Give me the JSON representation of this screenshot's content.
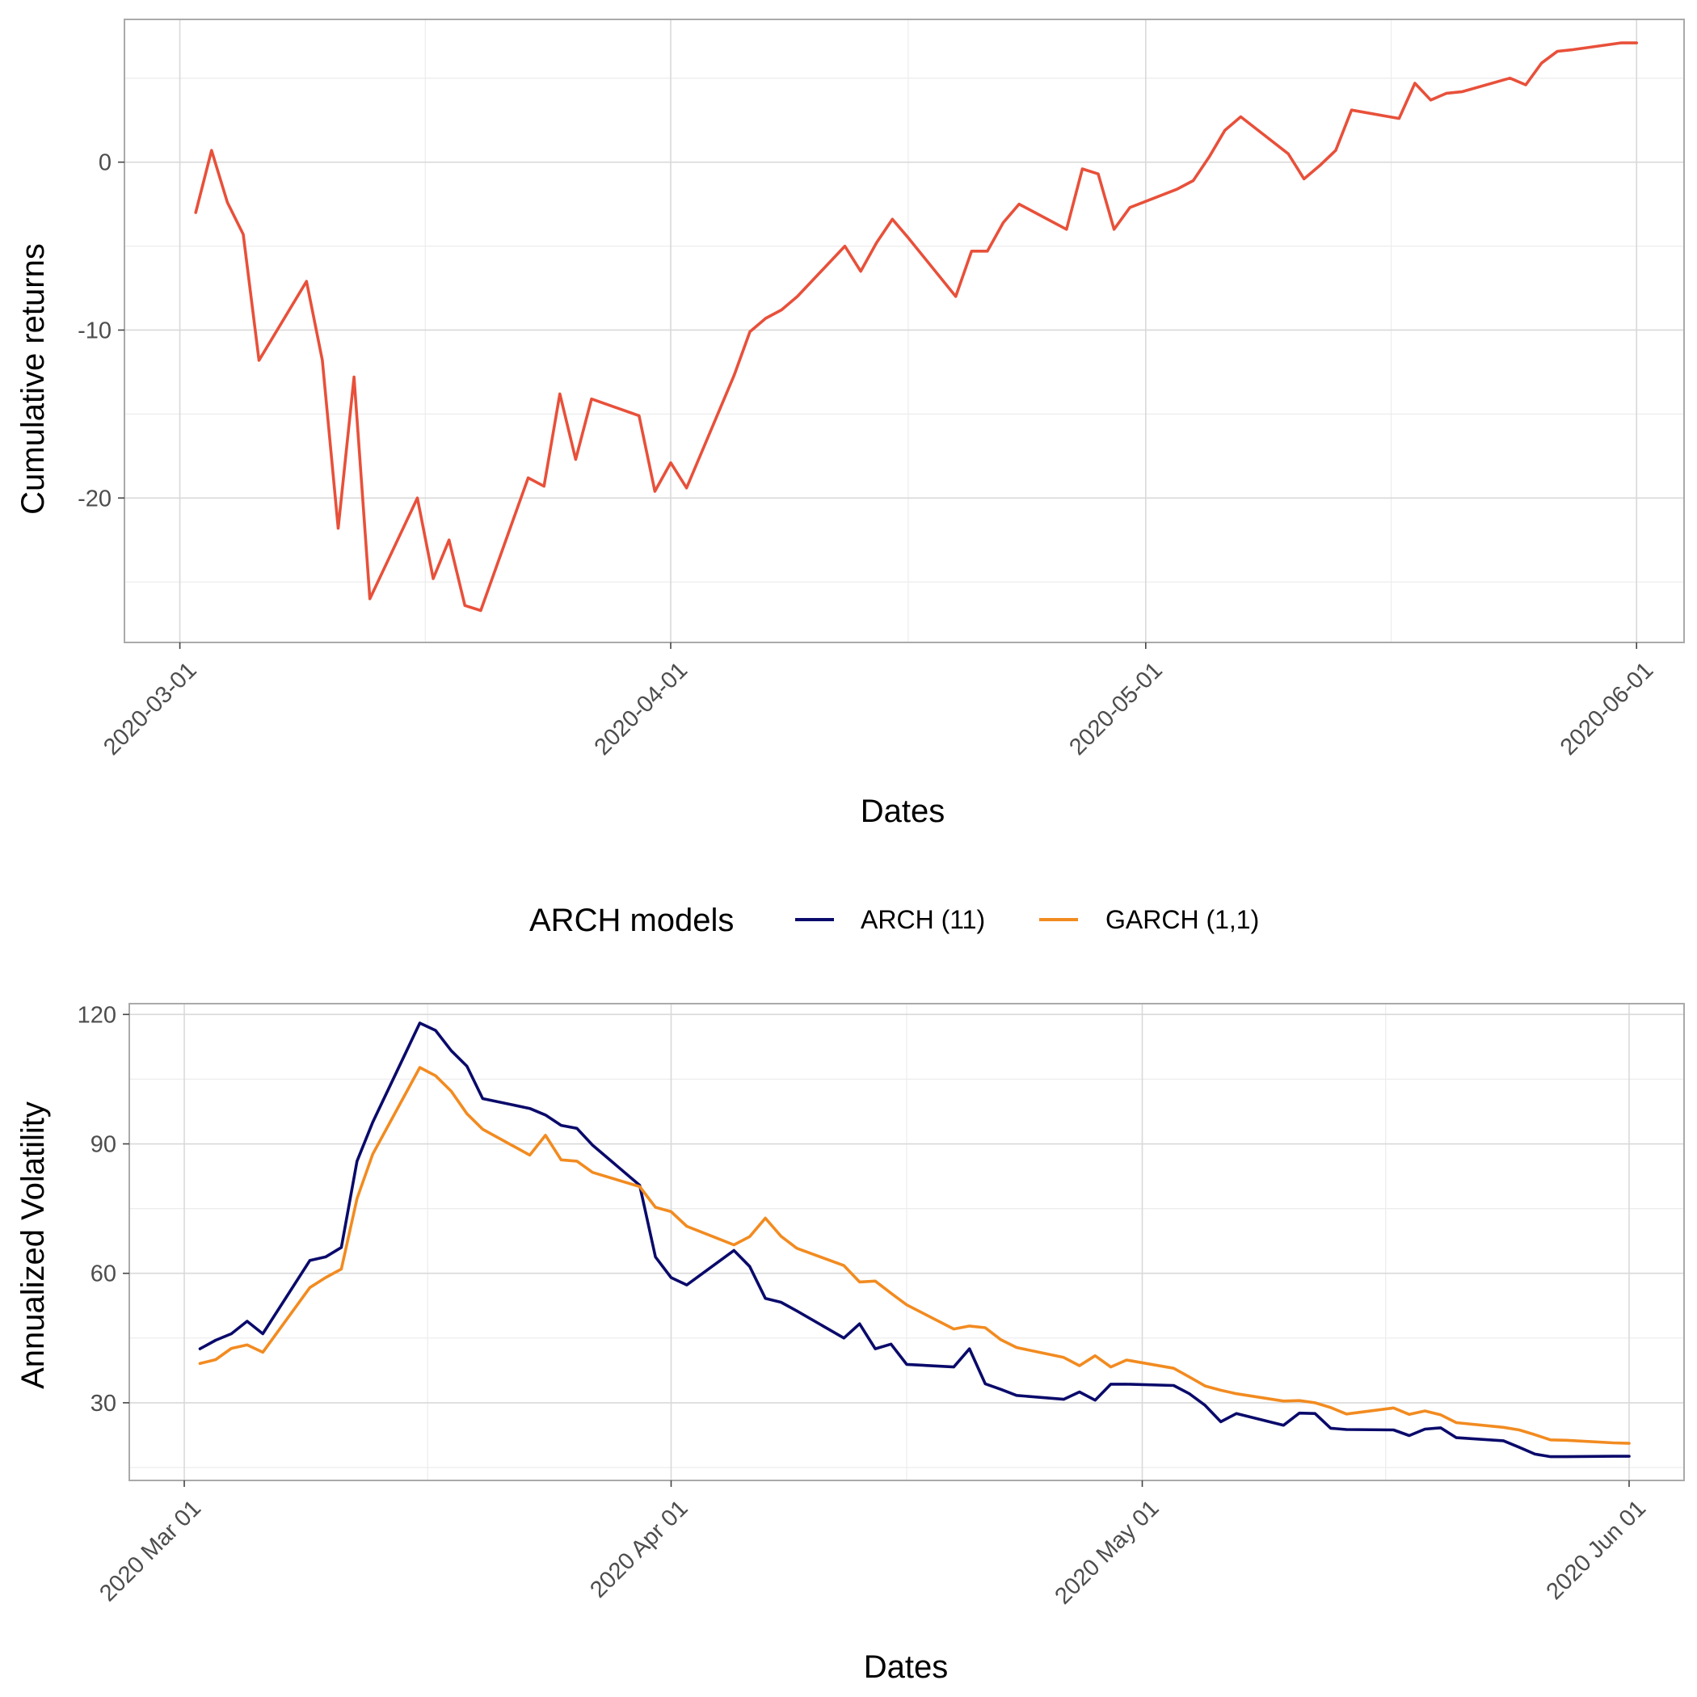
{
  "chart_data": [
    {
      "type": "line",
      "title": "",
      "xlabel": "Dates",
      "ylabel": "Cumulative returns",
      "x_tick_labels": [
        "2020-03-01",
        "2020-04-01",
        "2020-05-01",
        "2020-06-01"
      ],
      "x_tick_days": [
        0,
        31,
        61,
        92
      ],
      "y_tick_labels": [
        "0",
        "-10",
        "-20"
      ],
      "y_tick_values": [
        0,
        -10,
        -20
      ],
      "xlim_days": [
        -3.5,
        95.0
      ],
      "ylim": [
        -28.6,
        8.5
      ],
      "grid": true,
      "series": [
        {
          "name": "Cumulative returns",
          "color": "#E8503A",
          "x_days": [
            1,
            2,
            3,
            4,
            5,
            8,
            9,
            10,
            11,
            12,
            15,
            16,
            17,
            18,
            19,
            22,
            23,
            24,
            25,
            26,
            29,
            30,
            31,
            32,
            35,
            36,
            37,
            38,
            39,
            42,
            43,
            44,
            45,
            46,
            49,
            50,
            51,
            52,
            53,
            56,
            57,
            58,
            59,
            60,
            63,
            64,
            65,
            66,
            67,
            70,
            71,
            72,
            73,
            74,
            77,
            78,
            79,
            80,
            81,
            84,
            85,
            86,
            87,
            88,
            91,
            92
          ],
          "values": [
            -3.0,
            0.7,
            -2.4,
            -4.3,
            -11.8,
            -7.1,
            -11.8,
            -21.8,
            -12.8,
            -26.0,
            -20.0,
            -24.8,
            -22.5,
            -26.4,
            -26.7,
            -18.8,
            -19.3,
            -13.8,
            -17.7,
            -14.1,
            -15.1,
            -19.6,
            -17.9,
            -19.4,
            -12.7,
            -10.1,
            -9.3,
            -8.8,
            -8.0,
            -5.0,
            -6.5,
            -4.8,
            -3.4,
            -4.5,
            -8.0,
            -5.3,
            -5.3,
            -3.6,
            -2.5,
            -4.0,
            -0.4,
            -0.7,
            -4.0,
            -2.7,
            -1.6,
            -1.1,
            0.3,
            1.9,
            2.7,
            0.5,
            -1.0,
            -0.2,
            0.7,
            3.1,
            2.6,
            4.7,
            3.7,
            4.1,
            4.2,
            5.0,
            4.6,
            5.9,
            6.6,
            6.7,
            7.1,
            7.1
          ]
        }
      ]
    },
    {
      "type": "line",
      "title": "",
      "xlabel": "Dates",
      "ylabel": "Annualized Volatility",
      "x_tick_labels": [
        "2020 Mar 01",
        "2020 Apr 01",
        "2020 May 01",
        "2020 Jun 01"
      ],
      "x_tick_days": [
        0,
        31,
        61,
        92
      ],
      "y_tick_labels": [
        "30",
        "60",
        "90",
        "120"
      ],
      "y_tick_values": [
        30,
        60,
        90,
        120
      ],
      "xlim_days": [
        -3.5,
        95.5
      ],
      "ylim": [
        12.0,
        122.5
      ],
      "grid": true,
      "legend": {
        "title": "ARCH models",
        "position": "top",
        "entries": [
          "ARCH (11)",
          "GARCH (1,1)"
        ]
      },
      "series": [
        {
          "name": "ARCH (11)",
          "color": "#0A0A6B",
          "x_days": [
            1,
            2,
            3,
            4,
            5,
            8,
            9,
            10,
            11,
            12,
            15,
            16,
            17,
            18,
            19,
            22,
            23,
            24,
            25,
            26,
            29,
            30,
            31,
            32,
            35,
            36,
            37,
            38,
            39,
            42,
            43,
            44,
            45,
            46,
            49,
            50,
            51,
            52,
            53,
            56,
            57,
            58,
            59,
            60,
            63,
            64,
            65,
            66,
            67,
            70,
            71,
            72,
            73,
            74,
            77,
            78,
            79,
            80,
            81,
            84,
            85,
            86,
            87,
            88,
            91,
            92
          ],
          "values": [
            42.5,
            44.5,
            46.0,
            48.9,
            46.0,
            63.0,
            63.8,
            66.0,
            86.0,
            95.0,
            118.0,
            116.3,
            111.6,
            108.0,
            100.5,
            98.2,
            96.7,
            94.3,
            93.6,
            89.7,
            80.4,
            63.8,
            59.0,
            57.3,
            65.3,
            61.6,
            54.2,
            53.3,
            51.3,
            45.0,
            48.3,
            42.5,
            43.6,
            38.9,
            38.3,
            42.5,
            34.4,
            33.1,
            31.7,
            30.8,
            32.5,
            30.6,
            34.3,
            34.3,
            34.0,
            32.1,
            29.4,
            25.6,
            27.5,
            24.8,
            27.6,
            27.5,
            24.1,
            23.8,
            23.7,
            22.4,
            23.9,
            24.2,
            21.9,
            21.2,
            19.7,
            18.1,
            17.5,
            17.5,
            17.6,
            17.6
          ]
        },
        {
          "name": "GARCH (1,1)",
          "color": "#F28B20",
          "x_days": [
            1,
            2,
            3,
            4,
            5,
            8,
            9,
            10,
            11,
            12,
            15,
            16,
            17,
            18,
            19,
            22,
            23,
            24,
            25,
            26,
            29,
            30,
            31,
            32,
            35,
            36,
            37,
            38,
            39,
            42,
            43,
            44,
            45,
            46,
            49,
            50,
            51,
            52,
            53,
            56,
            57,
            58,
            59,
            60,
            63,
            64,
            65,
            66,
            67,
            70,
            71,
            72,
            73,
            74,
            77,
            78,
            79,
            80,
            81,
            84,
            85,
            86,
            87,
            88,
            91,
            92
          ],
          "values": [
            39.1,
            40.0,
            42.6,
            43.4,
            41.7,
            56.7,
            59.0,
            61.0,
            77.3,
            87.6,
            107.7,
            105.8,
            102.2,
            97.0,
            93.4,
            87.4,
            92.0,
            86.3,
            86.0,
            83.4,
            80.1,
            75.3,
            74.3,
            70.9,
            66.6,
            68.5,
            72.8,
            68.6,
            65.8,
            61.8,
            58.0,
            58.2,
            55.4,
            52.7,
            47.1,
            47.8,
            47.4,
            44.6,
            42.8,
            40.5,
            38.6,
            40.9,
            38.3,
            39.9,
            38.0,
            36.0,
            33.9,
            32.9,
            32.1,
            30.4,
            30.5,
            30.0,
            28.9,
            27.4,
            28.8,
            27.3,
            28.1,
            27.2,
            25.4,
            24.3,
            23.7,
            22.6,
            21.4,
            21.3,
            20.7,
            20.6
          ]
        }
      ]
    }
  ]
}
